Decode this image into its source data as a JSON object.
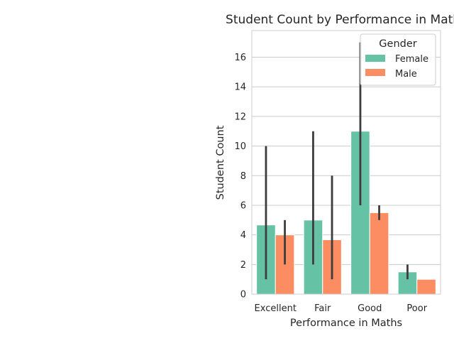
{
  "chart_data": {
    "type": "bar",
    "title": "Student Count by Performance in Maths",
    "xlabel": "Performance in Maths",
    "ylabel": "Student Count",
    "categories": [
      "Excellent",
      "Fair",
      "Good",
      "Poor"
    ],
    "ylim": [
      0,
      17.8
    ],
    "yticks": [
      0,
      2,
      4,
      6,
      8,
      10,
      12,
      14,
      16
    ],
    "grid": "horizontal",
    "legend": {
      "title": "Gender",
      "placement": "top-right"
    },
    "series": [
      {
        "name": "Female",
        "color": "#66c2a5",
        "values": [
          4.67,
          5.0,
          11.0,
          1.5
        ],
        "error_low": [
          1,
          2,
          6,
          1
        ],
        "error_high": [
          10,
          11,
          17,
          2
        ]
      },
      {
        "name": "Male",
        "color": "#fc8d62",
        "values": [
          4.0,
          3.67,
          5.5,
          1.0
        ],
        "error_low": [
          2,
          1,
          5,
          1
        ],
        "error_high": [
          5,
          8,
          6,
          1
        ]
      }
    ]
  }
}
